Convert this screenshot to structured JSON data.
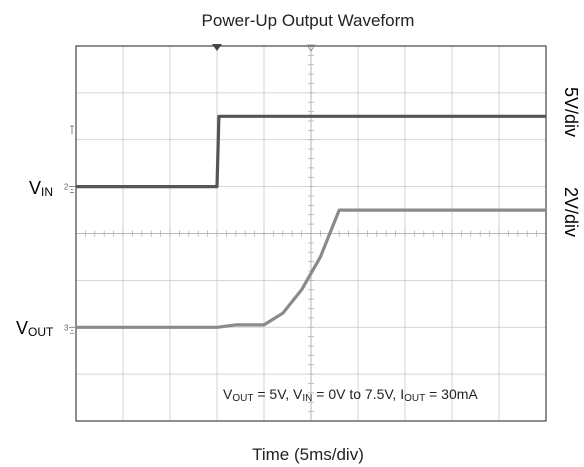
{
  "chart_data": {
    "type": "line",
    "title": "Power-Up Output Waveform",
    "xlabel": "Time (5ms/div)",
    "grid": true,
    "x_divisions": 10,
    "y_divisions": 8,
    "xlim": [
      0,
      50
    ],
    "series": [
      {
        "name": "VIN",
        "label_main": "V",
        "label_sub": "IN",
        "scale": "5V/div",
        "channel_marker": "2",
        "color": "#555555",
        "x": [
          0,
          15,
          15.2,
          50
        ],
        "values": [
          0,
          0,
          7.5,
          7.5
        ]
      },
      {
        "name": "VOUT",
        "label_main": "V",
        "label_sub": "OUT",
        "scale": "2V/div",
        "channel_marker": "3",
        "color": "#8a8a8a",
        "x": [
          0,
          15,
          17,
          20,
          22,
          24,
          26,
          27,
          28,
          50
        ],
        "values": [
          0,
          0,
          0.1,
          0.1,
          0.6,
          1.6,
          3.0,
          4.0,
          5.0,
          5.0
        ]
      }
    ],
    "annotation": {
      "parts": [
        {
          "t": "V",
          "sub": false
        },
        {
          "t": "OUT",
          "sub": true
        },
        {
          "t": " = 5V, V",
          "sub": false
        },
        {
          "t": "IN",
          "sub": true
        },
        {
          "t": " = 0V to 7.5V, I",
          "sub": false
        },
        {
          "t": "OUT",
          "sub": true
        },
        {
          "t": " = 30mA",
          "sub": false
        }
      ]
    }
  }
}
